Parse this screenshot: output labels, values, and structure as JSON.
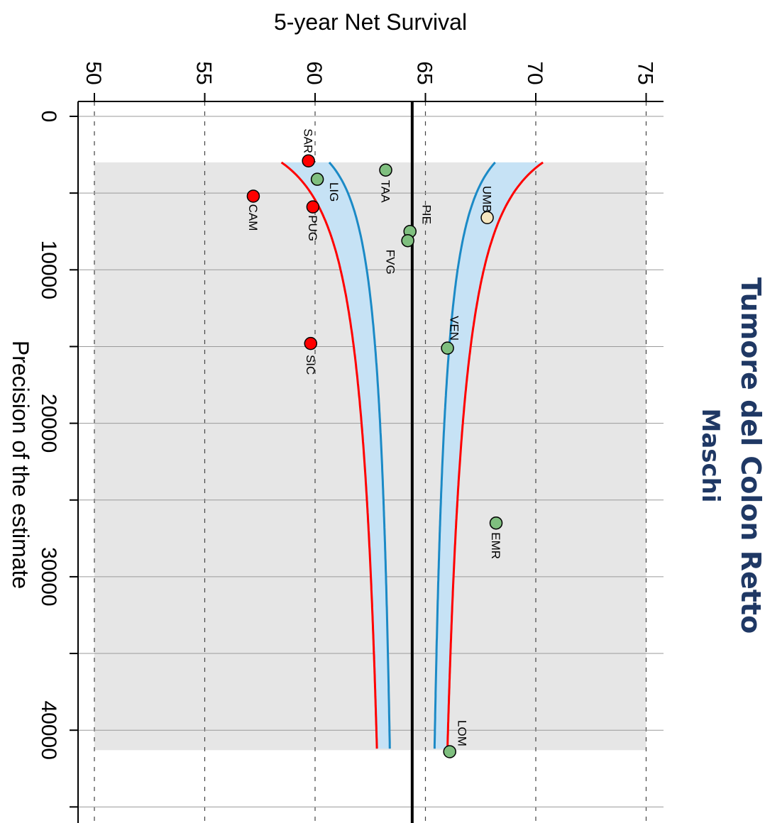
{
  "title": "Tumore del Colon Retto",
  "subtitle": "Maschi",
  "chart_data": {
    "type": "scatter",
    "orientation": "rotated-90-clockwise",
    "xlabel": "Precision of the estimate",
    "ylabel": "5-year Net Survival",
    "xlim": [
      0,
      45000
    ],
    "ylim": [
      50,
      75
    ],
    "x_ticks": [
      0,
      10000,
      20000,
      30000,
      40000
    ],
    "y_ticks": [
      50,
      55,
      60,
      65,
      70,
      75
    ],
    "reference_line": 64.4,
    "grid": true,
    "shaded_region_x": [
      3000,
      41300
    ],
    "points": [
      {
        "label": "SAR",
        "x": 2900,
        "y": 59.7,
        "color": "#ff0000"
      },
      {
        "label": "TAA",
        "x": 3500,
        "y": 63.2,
        "color": "#7fbf7f"
      },
      {
        "label": "LIG",
        "x": 4100,
        "y": 60.1,
        "color": "#7fbf7f"
      },
      {
        "label": "CAM",
        "x": 5200,
        "y": 57.2,
        "color": "#ff0000"
      },
      {
        "label": "PUG",
        "x": 5900,
        "y": 59.9,
        "color": "#ff0000"
      },
      {
        "label": "UMB",
        "x": 6600,
        "y": 67.8,
        "color": "#f5e6c0"
      },
      {
        "label": "PIE",
        "x": 7500,
        "y": 64.3,
        "color": "#7fbf7f"
      },
      {
        "label": "FVG",
        "x": 8100,
        "y": 64.2,
        "color": "#7fbf7f"
      },
      {
        "label": "SIC",
        "x": 14800,
        "y": 59.8,
        "color": "#ff0000"
      },
      {
        "label": "VEN",
        "x": 15100,
        "y": 66.0,
        "color": "#7fbf7f"
      },
      {
        "label": "EMR",
        "x": 26500,
        "y": 68.2,
        "color": "#7fbf7f"
      },
      {
        "label": "LOM",
        "x": 41400,
        "y": 66.1,
        "color": "#7fbf7f"
      }
    ],
    "funnel_inner_color": "#1b8ac6",
    "funnel_outer_color": "#ff0000",
    "funnel_fill_color": "#c6e2f5",
    "region_color": "#e6e6e6"
  }
}
